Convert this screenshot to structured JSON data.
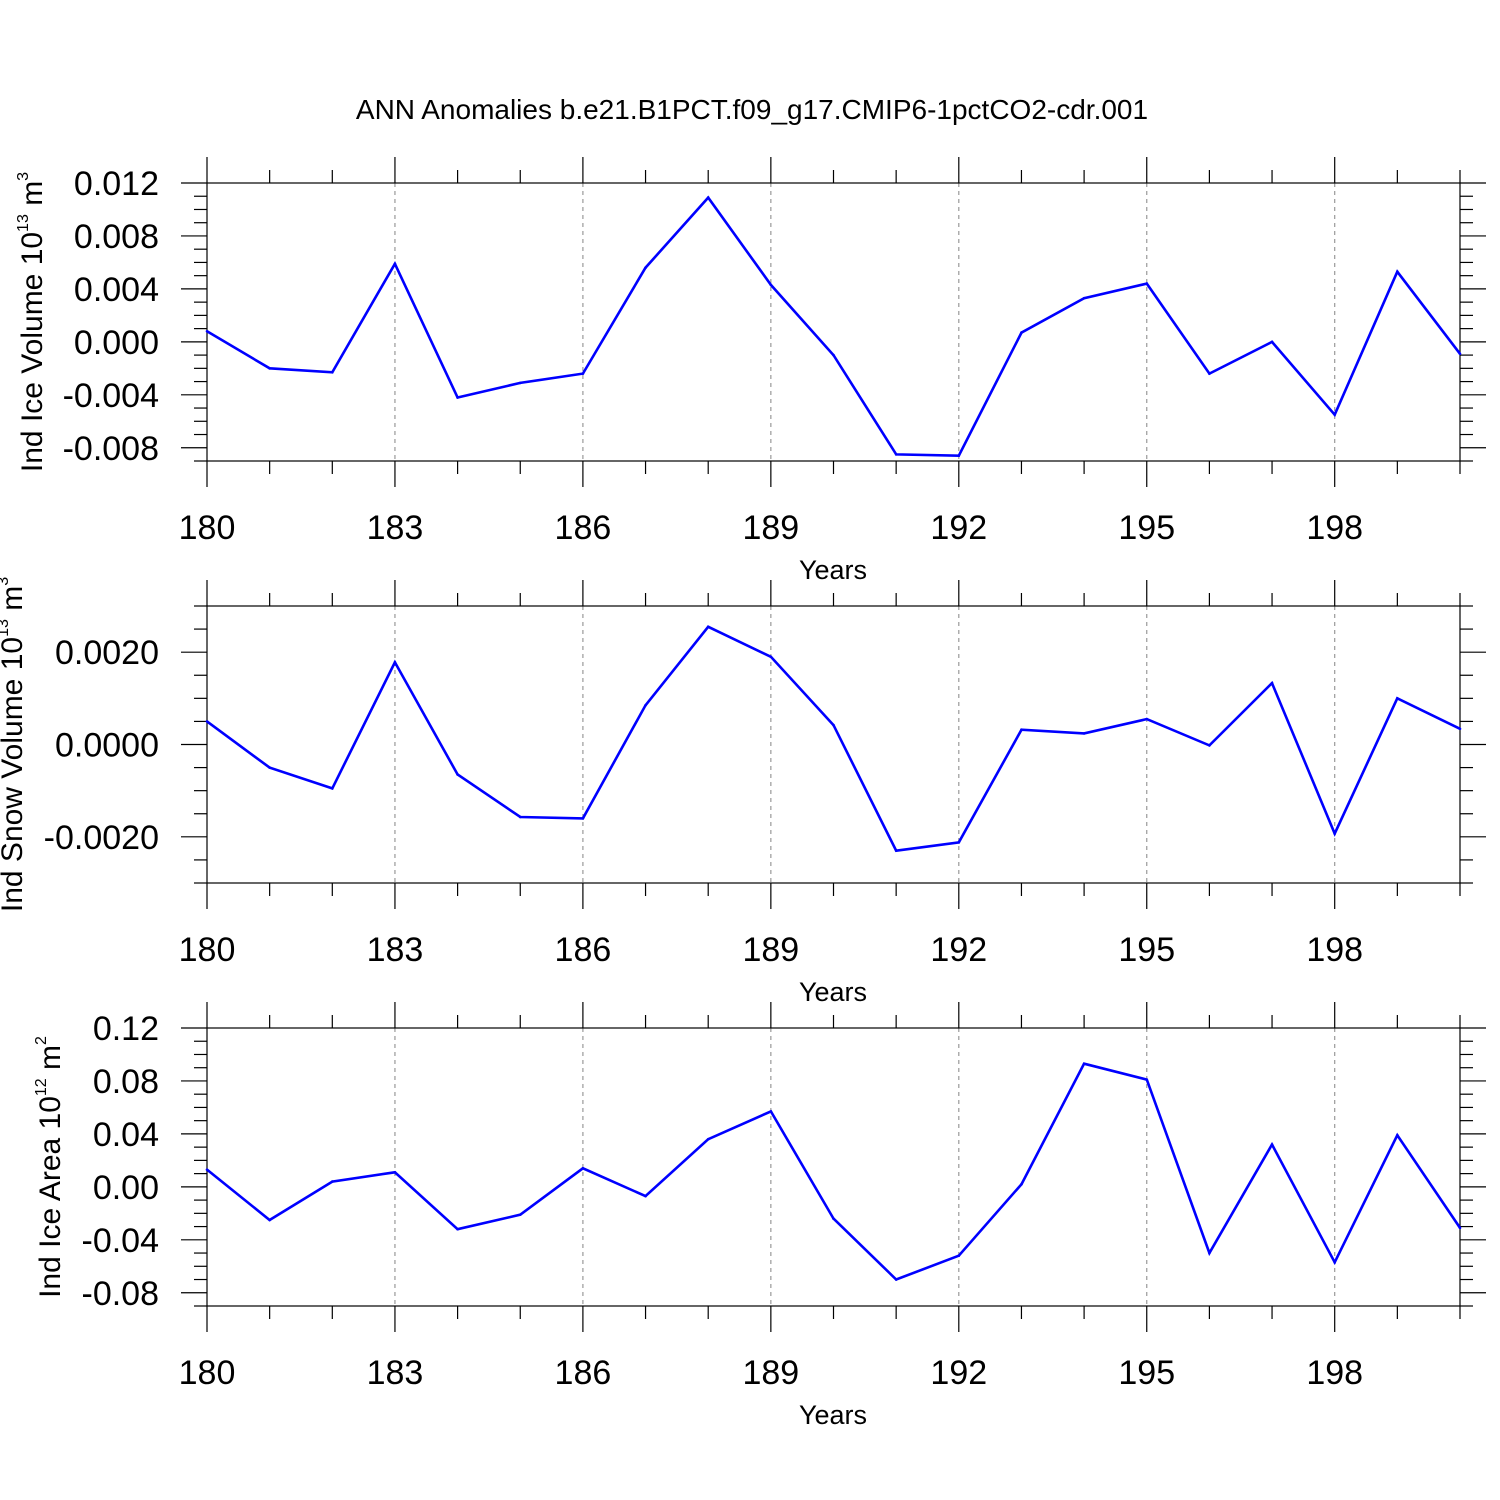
{
  "title": "ANN Anomalies b.e21.B1PCT.f09_g17.CMIP6-1pctCO2-cdr.001",
  "chart_data": [
    {
      "type": "line",
      "ylabel": {
        "main": "Ind Ice Volume 10",
        "exp": "13",
        "unit": " m",
        "unit_exp": "3"
      },
      "xlabel": "Years",
      "xlim": [
        180,
        200
      ],
      "ylim": [
        -0.009,
        0.012
      ],
      "yticks": [
        -0.008,
        -0.004,
        0.0,
        0.004,
        0.008,
        0.012
      ],
      "ytick_labels": [
        "-0.008",
        "-0.004",
        "0.000",
        "0.004",
        "0.008",
        "0.012"
      ],
      "xticks": [
        180,
        183,
        186,
        189,
        192,
        195,
        198
      ],
      "xtick_labels": [
        "180",
        "183",
        "186",
        "189",
        "192",
        "195",
        "198"
      ],
      "x": [
        180,
        181,
        182,
        183,
        184,
        185,
        186,
        187,
        188,
        189,
        190,
        191,
        192,
        193,
        194,
        195,
        196,
        197,
        198,
        199,
        200
      ],
      "values": [
        0.0008,
        -0.002,
        -0.0023,
        0.0059,
        -0.0042,
        -0.0031,
        -0.0024,
        0.0056,
        0.0109,
        0.0043,
        -0.001,
        -0.0085,
        -0.0086,
        0.0007,
        0.0033,
        0.0044,
        -0.0024,
        0.0,
        -0.0055,
        0.0053,
        -0.0009
      ],
      "grid": "vertical dashed at major ticks",
      "color": "#0000ff"
    },
    {
      "type": "line",
      "ylabel": {
        "main": "Ind Snow Volume 10",
        "exp": "13",
        "unit": " m",
        "unit_exp": "3"
      },
      "xlabel": "Years",
      "xlim": [
        180,
        200
      ],
      "ylim": [
        -0.003,
        0.003
      ],
      "yticks": [
        -0.002,
        0.0,
        0.002
      ],
      "ytick_labels": [
        "-0.0020",
        "0.0000",
        "0.0020"
      ],
      "xticks": [
        180,
        183,
        186,
        189,
        192,
        195,
        198
      ],
      "xtick_labels": [
        "180",
        "183",
        "186",
        "189",
        "192",
        "195",
        "198"
      ],
      "x": [
        180,
        181,
        182,
        183,
        184,
        185,
        186,
        187,
        188,
        189,
        190,
        191,
        192,
        193,
        194,
        195,
        196,
        197,
        198,
        199,
        200
      ],
      "values": [
        0.0005,
        -0.0005,
        -0.00095,
        0.00178,
        -0.00065,
        -0.00157,
        -0.0016,
        0.00085,
        0.00255,
        0.0019,
        0.00042,
        -0.0023,
        -0.00212,
        0.00032,
        0.00024,
        0.00055,
        -2e-05,
        0.00133,
        -0.00193,
        0.001,
        0.00034
      ],
      "grid": "vertical dashed at major ticks",
      "color": "#0000ff"
    },
    {
      "type": "line",
      "ylabel": {
        "main": "Ind Ice Area 10",
        "exp": "12",
        "unit": " m",
        "unit_exp": "2"
      },
      "xlabel": "Years",
      "xlim": [
        180,
        200
      ],
      "ylim": [
        -0.09,
        0.12
      ],
      "yticks": [
        -0.08,
        -0.04,
        0.0,
        0.04,
        0.08,
        0.12
      ],
      "ytick_labels": [
        "-0.08",
        "-0.04",
        "0.00",
        "0.04",
        "0.08",
        "0.12"
      ],
      "xticks": [
        180,
        183,
        186,
        189,
        192,
        195,
        198
      ],
      "xtick_labels": [
        "180",
        "183",
        "186",
        "189",
        "192",
        "195",
        "198"
      ],
      "x": [
        180,
        181,
        182,
        183,
        184,
        185,
        186,
        187,
        188,
        189,
        190,
        191,
        192,
        193,
        194,
        195,
        196,
        197,
        198,
        199,
        200
      ],
      "values": [
        0.013,
        -0.025,
        0.004,
        0.011,
        -0.032,
        -0.021,
        0.014,
        -0.007,
        0.036,
        0.057,
        -0.024,
        -0.07,
        -0.052,
        0.002,
        0.093,
        0.081,
        -0.05,
        0.032,
        -0.057,
        0.039,
        -0.031
      ],
      "grid": "vertical dashed at major ticks",
      "color": "#0000ff"
    }
  ]
}
